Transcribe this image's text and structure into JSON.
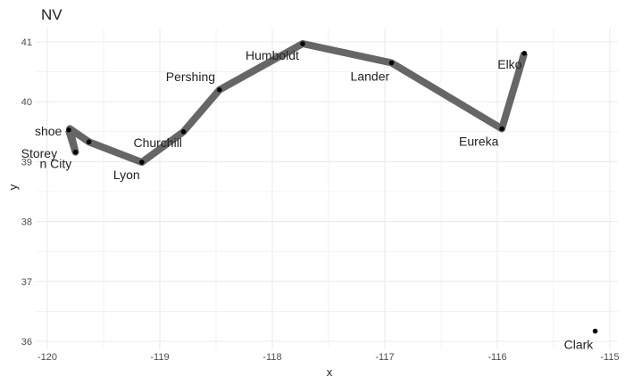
{
  "chart_data": {
    "type": "line",
    "title": "NV",
    "xlabel": "x",
    "ylabel": "y",
    "xlim": [
      -120,
      -115
    ],
    "ylim": [
      36,
      41.2
    ],
    "x_ticks": [
      -120,
      -119,
      -118,
      -117,
      -116,
      -115
    ],
    "x_tick_labels": [
      "-120",
      "-119",
      "-118",
      "-117",
      "-116",
      "-115"
    ],
    "y_ticks": [
      36,
      37,
      38,
      39,
      40,
      41
    ],
    "y_tick_labels": [
      "36",
      "37",
      "38",
      "39",
      "40",
      "41"
    ],
    "grid": true,
    "path": [
      {
        "x": -119.81,
        "y": 39.53
      },
      {
        "x": -119.75,
        "y": 39.16
      },
      {
        "x": -119.8,
        "y": 39.55
      },
      {
        "x": -119.63,
        "y": 39.33
      },
      {
        "x": -119.16,
        "y": 38.99
      },
      {
        "x": -118.79,
        "y": 39.5
      },
      {
        "x": -118.47,
        "y": 40.2
      },
      {
        "x": -117.73,
        "y": 40.97
      },
      {
        "x": -116.94,
        "y": 40.65
      },
      {
        "x": -115.96,
        "y": 39.55
      },
      {
        "x": -115.76,
        "y": 40.81
      }
    ],
    "points": [
      {
        "name": "shoe",
        "x": -119.81,
        "y": 39.53
      },
      {
        "name": "n City",
        "x": -119.75,
        "y": 39.16
      },
      {
        "name": "Storey",
        "x": -119.63,
        "y": 39.33
      },
      {
        "name": "Lyon",
        "x": -119.16,
        "y": 38.99
      },
      {
        "name": "Churchill",
        "x": -118.79,
        "y": 39.5
      },
      {
        "name": "Pershing",
        "x": -118.47,
        "y": 40.2
      },
      {
        "name": "Humboldt",
        "x": -117.73,
        "y": 40.97
      },
      {
        "name": "Lander",
        "x": -116.94,
        "y": 40.65
      },
      {
        "name": "Eureka",
        "x": -115.96,
        "y": 39.55
      },
      {
        "name": "Elko",
        "x": -115.76,
        "y": 40.81
      },
      {
        "name": "Clark",
        "x": -115.13,
        "y": 36.17
      }
    ],
    "colors": {
      "line": "#666666",
      "point": "#000000",
      "grid": "#ebebeb",
      "background": "#ffffff"
    }
  }
}
